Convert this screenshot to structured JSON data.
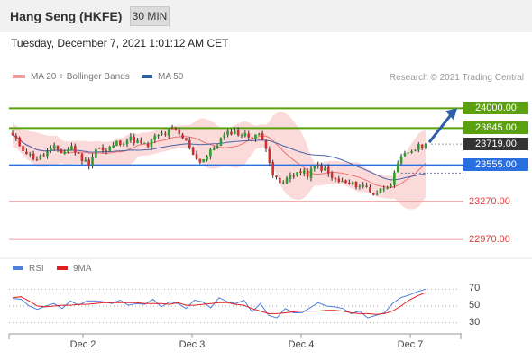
{
  "header": {
    "title": "Hang Seng (HKFE)",
    "timeframe": "30 MIN"
  },
  "timestamp": "Tuesday, December 7, 2021 1:01:12 AM CET",
  "legend": {
    "bb": "MA 20 + Bollinger Bands",
    "ma50": "MA 50",
    "rsi": "RSI",
    "rsi_ma": "9MA"
  },
  "credit": "Research © 2021 Trading Central",
  "colors": {
    "green": "#5ba00e",
    "blue": "#2a6fe0",
    "red": "#e23d3d",
    "dark": "#333333",
    "candle_up": "#2e9e30",
    "candle_down": "#cf2f2f",
    "band": "#fbdada",
    "ma20": "#f07070",
    "ma50": "#4a64a8",
    "rsi_line": "#4f7fd8",
    "rsi_ma_line": "#e02020",
    "arrow": "#2f5fa8"
  },
  "chart_data": [
    {
      "type": "candlestick",
      "title": "Hang Seng (HKFE)",
      "interval": "30 MIN",
      "ylim": [
        22900,
        24130
      ],
      "x_ticks": [
        "Dec 2",
        "Dec 3",
        "Dec 4",
        "Dec 7"
      ],
      "levels": [
        {
          "label": "24000.00",
          "value": 24000,
          "style": "resistance"
        },
        {
          "label": "23845.00",
          "value": 23845,
          "style": "resistance"
        },
        {
          "label": "23719.00",
          "value": 23719,
          "style": "last"
        },
        {
          "label": "23555.00",
          "value": 23555,
          "style": "pivot"
        },
        {
          "label": "23270.00",
          "value": 23270,
          "style": "support"
        },
        {
          "label": "22970.00",
          "value": 22970,
          "style": "support"
        }
      ],
      "close_path": [
        23780,
        23700,
        23630,
        23600,
        23650,
        23690,
        23650,
        23700,
        23620,
        23560,
        23700,
        23650,
        23720,
        23740,
        23760,
        23730,
        23700,
        23780,
        23800,
        23830,
        23780,
        23700,
        23580,
        23620,
        23700,
        23780,
        23820,
        23800,
        23780,
        23800,
        23720,
        23450,
        23400,
        23480,
        23500,
        23480,
        23550,
        23520,
        23440,
        23420,
        23400,
        23400,
        23380,
        23320,
        23380,
        23420,
        23600,
        23660,
        23690,
        23719
      ],
      "arrow_target": 24000
    },
    {
      "type": "line",
      "title": "RSI",
      "ylim": [
        20,
        80
      ],
      "y_ticks": [
        70,
        50,
        30
      ],
      "series": [
        {
          "name": "RSI",
          "values": [
            59,
            58,
            50,
            46,
            50,
            53,
            47,
            56,
            51,
            56,
            56,
            55,
            53,
            57,
            51,
            53,
            52,
            58,
            49,
            55,
            53,
            47,
            57,
            55,
            48,
            60,
            55,
            53,
            57,
            43,
            53,
            39,
            36,
            47,
            42,
            42,
            48,
            54,
            50,
            49,
            47,
            41,
            44,
            36,
            39,
            42,
            53,
            60,
            63,
            67,
            70
          ]
        },
        {
          "name": "9MA",
          "values": [
            60,
            61,
            56,
            50,
            49,
            50,
            51,
            51,
            52,
            52,
            53,
            54,
            54,
            54,
            54,
            54,
            53,
            53,
            53,
            52,
            54,
            51,
            51,
            52,
            53,
            54,
            54,
            52,
            51,
            47,
            44,
            41,
            41,
            42,
            43,
            44,
            44,
            44,
            45,
            45,
            44,
            42,
            41,
            41,
            40,
            41,
            44,
            50,
            57,
            62,
            66
          ]
        }
      ]
    }
  ]
}
